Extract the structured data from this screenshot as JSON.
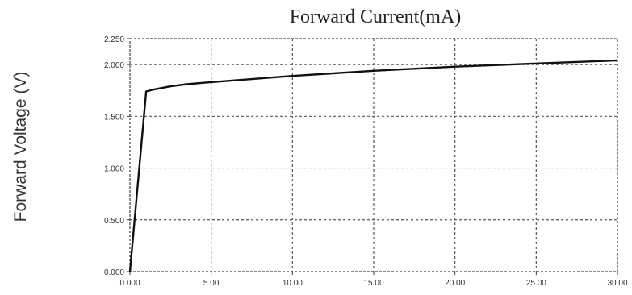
{
  "chart_data": {
    "type": "line",
    "title": "Forward Current(mA)",
    "ylabel": "Forward Voltage (V)",
    "xlabel": "",
    "xlim": [
      0,
      30
    ],
    "ylim": [
      0,
      2.25
    ],
    "x_ticks": [
      "0.000",
      "5.00",
      "10.00",
      "15.00",
      "20.00",
      "25.00",
      "30.00"
    ],
    "y_ticks": [
      "0.000",
      "0.500",
      "1.000",
      "1.500",
      "2.000",
      "2.250"
    ],
    "grid": true,
    "series": [
      {
        "color": "#111111",
        "x": [
          0,
          1,
          1.5,
          2.5,
          3.5,
          5,
          7.5,
          10,
          15,
          20,
          25,
          30
        ],
        "y": [
          0,
          1.74,
          1.76,
          1.79,
          1.81,
          1.83,
          1.86,
          1.89,
          1.94,
          1.98,
          2.01,
          2.04
        ]
      }
    ]
  }
}
